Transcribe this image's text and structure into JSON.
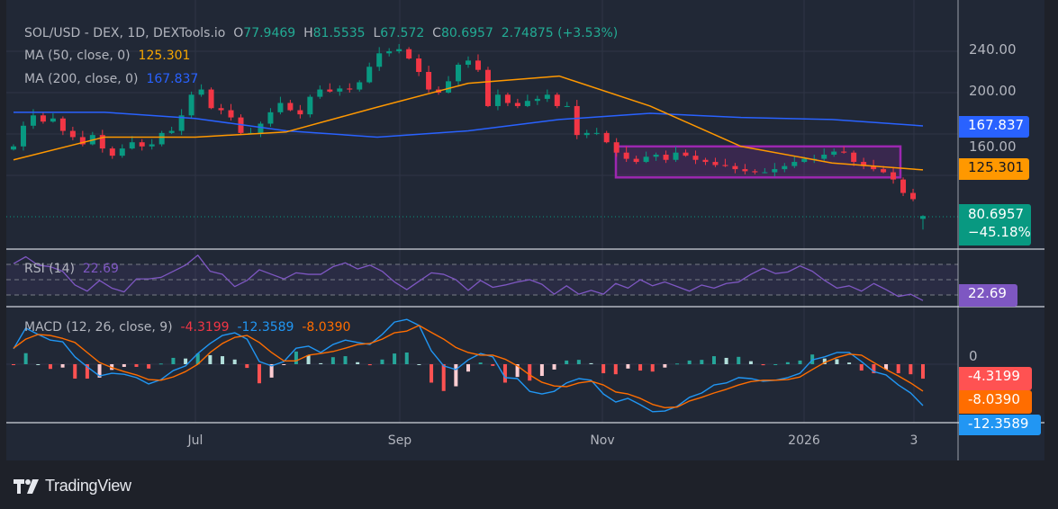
{
  "legend": {
    "symbol": "SOL/USD - DEX, 1D, DEXTools.io",
    "o_label": "O",
    "open": "77.9469",
    "h_label": "H",
    "high": "81.5535",
    "l_label": "L",
    "low": "67.572",
    "c_label": "C",
    "close": "80.6957",
    "change": "2.74875 (+3.53%)",
    "ma50_label": "MA (50, close, 0)",
    "ma50_value": "125.301",
    "ma200_label": "MA (200, close, 0)",
    "ma200_value": "167.837",
    "rsi_label": "RSI (14)",
    "rsi_value": "22.69",
    "macd_label": "MACD (12, 26, close, 9)",
    "macd_hist": "-4.3199",
    "macd_value": "-12.3589",
    "macd_signal": "-8.0390"
  },
  "right_axis": {
    "ticks": [
      "240.00",
      "200.00",
      "160.00"
    ],
    "ma200_badge": "167.837",
    "ma50_badge": "125.301",
    "price_badge": "80.6957",
    "price_change_badge": "−45.18%",
    "rsi_badge": "22.69",
    "macd_zero": "0",
    "macd_hist_badge": "-4.3199",
    "macd_signal_badge": "-8.0390",
    "macd_value_badge": "-12.3589"
  },
  "x_axis": {
    "ticks": [
      "Jul",
      "Sep",
      "Nov",
      "2026",
      "3"
    ]
  },
  "brand": {
    "name": "TradingView"
  },
  "colors": {
    "up": "#089981",
    "down": "#f23645",
    "ma50": "#ff9800",
    "ma200": "#2962ff",
    "rsi": "#7e57c2",
    "macd": "#2196f3",
    "signal": "#ff6d00",
    "range_box": "#9c27b0"
  },
  "chart_data": {
    "type": "candlestick",
    "symbol": "SOL/USD",
    "interval": "1D",
    "price_axis": {
      "ylim": [
        55,
        255
      ],
      "ticks": [
        240,
        200,
        160
      ]
    },
    "last_candle": {
      "open": 77.9469,
      "high": 81.5535,
      "low": 67.572,
      "close": 80.6957
    },
    "closes": [
      148,
      168,
      178,
      172,
      175,
      163,
      157,
      150,
      159,
      146,
      139,
      146,
      152,
      148,
      150,
      161,
      163,
      178,
      198,
      203,
      185,
      183,
      176,
      161,
      161,
      170,
      181,
      190,
      183,
      179,
      196,
      203,
      201,
      204,
      203,
      210,
      225,
      238,
      240,
      242,
      233,
      220,
      203,
      200,
      211,
      227,
      231,
      222,
      187,
      198,
      190,
      187,
      192,
      194,
      198,
      187,
      187,
      159,
      161,
      161,
      152,
      142,
      136,
      133,
      138,
      140,
      135,
      142,
      139,
      135,
      133,
      130,
      129,
      126,
      124,
      123,
      123,
      126,
      129,
      133,
      136,
      136,
      140,
      143,
      142,
      133,
      129,
      126,
      123,
      116,
      103,
      97,
      80.6957
    ],
    "ma50": [
      135,
      157,
      157,
      162,
      186,
      209,
      216,
      187,
      148,
      132,
      125.301
    ],
    "ma200": [
      181,
      181,
      175,
      163,
      157,
      163,
      174,
      180,
      176,
      174,
      167.837
    ],
    "range_box": {
      "price_high": 148,
      "price_low": 118
    },
    "rsi": {
      "period": 14,
      "levels": [
        70,
        50,
        30
      ],
      "values": [
        71,
        80,
        69,
        67,
        61,
        43,
        35,
        49,
        39,
        34,
        51,
        51,
        53,
        61,
        69,
        82,
        61,
        57,
        41,
        49,
        63,
        57,
        51,
        59,
        57,
        57,
        67,
        72,
        64,
        69,
        61,
        47,
        37,
        48,
        59,
        57,
        50,
        36,
        49,
        40,
        43,
        47,
        50,
        44,
        31,
        42,
        31,
        36,
        31,
        45,
        39,
        50,
        42,
        47,
        41,
        35,
        43,
        39,
        45,
        47,
        57,
        65,
        58,
        60,
        68,
        61,
        49,
        39,
        42,
        35,
        45,
        37,
        28,
        31,
        22.69
      ]
    },
    "macd": {
      "params": [
        12,
        26,
        9
      ],
      "macd": [
        4.6,
        10.8,
        8.9,
        7.2,
        6.7,
        2.2,
        -0.8,
        -3.5,
        -2.7,
        -3.0,
        -4.0,
        -5.9,
        -4.6,
        -1.9,
        -0.5,
        3.2,
        6.2,
        8.6,
        9.4,
        7.5,
        0.8,
        -0.5,
        0.8,
        4.8,
        5.4,
        3.5,
        5.9,
        7.2,
        6.5,
        5.9,
        8.9,
        12.6,
        13.4,
        11.6,
        4.0,
        -0.5,
        -1.6,
        1.3,
        3.2,
        2.2,
        -4.0,
        -4.3,
        -8.1,
        -8.9,
        -8.1,
        -5.6,
        -4.3,
        -4.8,
        -8.9,
        -11.3,
        -10.2,
        -12.1,
        -14.2,
        -14.0,
        -12.6,
        -9.9,
        -8.6,
        -6.2,
        -5.6,
        -4.0,
        -4.3,
        -5.1,
        -4.8,
        -4.0,
        -2.7,
        1.3,
        2.2,
        3.5,
        3.5,
        0.8,
        -2.2,
        -3.2,
        -6.2,
        -8.6,
        -12.3589
      ],
      "signal": [
        4.8,
        7.5,
        8.9,
        8.6,
        7.7,
        6.5,
        3.5,
        0.5,
        -1.0,
        -2.2,
        -3.2,
        -4.6,
        -4.8,
        -3.8,
        -2.2,
        0.0,
        3.5,
        6.2,
        8.0,
        8.6,
        6.5,
        3.5,
        1.0,
        1.0,
        2.7,
        3.2,
        3.8,
        4.8,
        5.9,
        6.2,
        7.5,
        9.4,
        9.9,
        11.6,
        9.5,
        7.5,
        5.0,
        3.5,
        2.7,
        2.7,
        1.5,
        -0.5,
        -3.2,
        -5.4,
        -6.5,
        -6.7,
        -5.6,
        -5.1,
        -6.2,
        -8.3,
        -8.9,
        -10.2,
        -12.0,
        -13.0,
        -12.8,
        -11.0,
        -9.9,
        -8.6,
        -7.5,
        -6.2,
        -5.2,
        -4.8,
        -4.8,
        -4.6,
        -3.8,
        -1.6,
        0.5,
        2.0,
        3.0,
        2.7,
        0.5,
        -1.6,
        -3.5,
        -5.6,
        -8.039
      ]
    },
    "x_ticks": [
      "Jul",
      "Sep",
      "Nov",
      "2026",
      "3"
    ],
    "grid": true
  }
}
